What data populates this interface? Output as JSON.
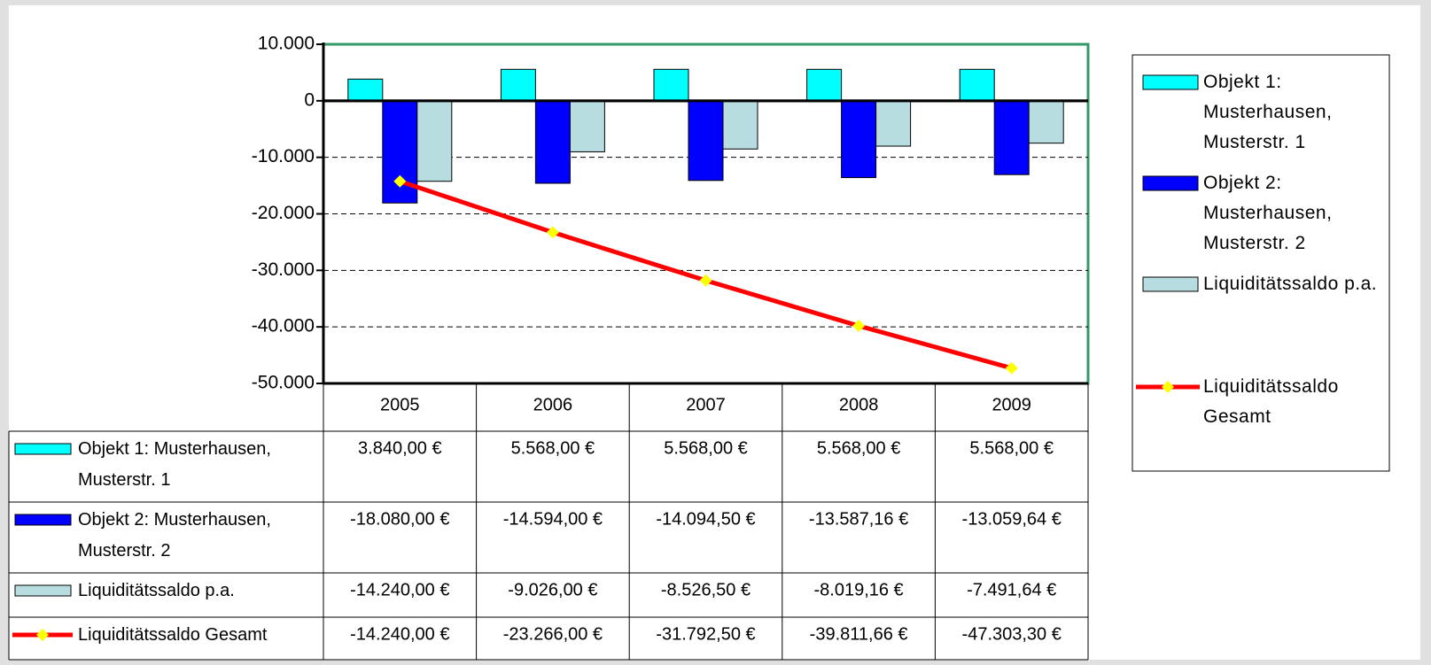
{
  "chart_data": {
    "type": "bar",
    "categories": [
      "2005",
      "2006",
      "2007",
      "2008",
      "2009"
    ],
    "series": [
      {
        "name": "Objekt 1: Musterhausen, Musterstr. 1",
        "color": "#00ffff",
        "values": [
          3840,
          5568,
          5568,
          5568,
          5568
        ],
        "value_labels": [
          "3.840,00 €",
          "5.568,00 €",
          "5.568,00 €",
          "5.568,00 €",
          "5.568,00 €"
        ]
      },
      {
        "name": "Objekt 2: Musterhausen, Musterstr. 2",
        "color": "#0000ff",
        "values": [
          -18080,
          -14594,
          -14094.5,
          -13587.16,
          -13059.64
        ],
        "value_labels": [
          "-18.080,00 €",
          "-14.594,00 €",
          "-14.094,50 €",
          "-13.587,16 €",
          "-13.059,64 €"
        ]
      },
      {
        "name": "Liquiditätssaldo p.a.",
        "color": "#b7dde0",
        "values": [
          -14240,
          -9026,
          -8526.5,
          -8019.16,
          -7491.64
        ],
        "value_labels": [
          "-14.240,00 €",
          "-9.026,00 €",
          "-8.526,50 €",
          "-8.019,16 €",
          "-7.491,64 €"
        ]
      },
      {
        "name": "Liquiditätssaldo Gesamt",
        "color": "#ff0000",
        "type": "line",
        "marker_color": "#ffff00",
        "values": [
          -14240,
          -23266,
          -31792.5,
          -39811.66,
          -47303.3
        ],
        "value_labels": [
          "-14.240,00 €",
          "-23.266,00 €",
          "-31.792,50 €",
          "-39.811,66 €",
          "-47.303,30 €"
        ]
      }
    ],
    "ylim": [
      -50000,
      10000
    ],
    "yticks": [
      {
        "value": -50000,
        "label": "-50.000"
      },
      {
        "value": -40000,
        "label": "-40.000"
      },
      {
        "value": -30000,
        "label": "-30.000"
      },
      {
        "value": -20000,
        "label": "-20.000"
      },
      {
        "value": -10000,
        "label": "-10.000"
      },
      0,
      {
        "value": 10000,
        "label": "10.000"
      }
    ],
    "grid": true,
    "legend": "right",
    "data_table": true
  }
}
